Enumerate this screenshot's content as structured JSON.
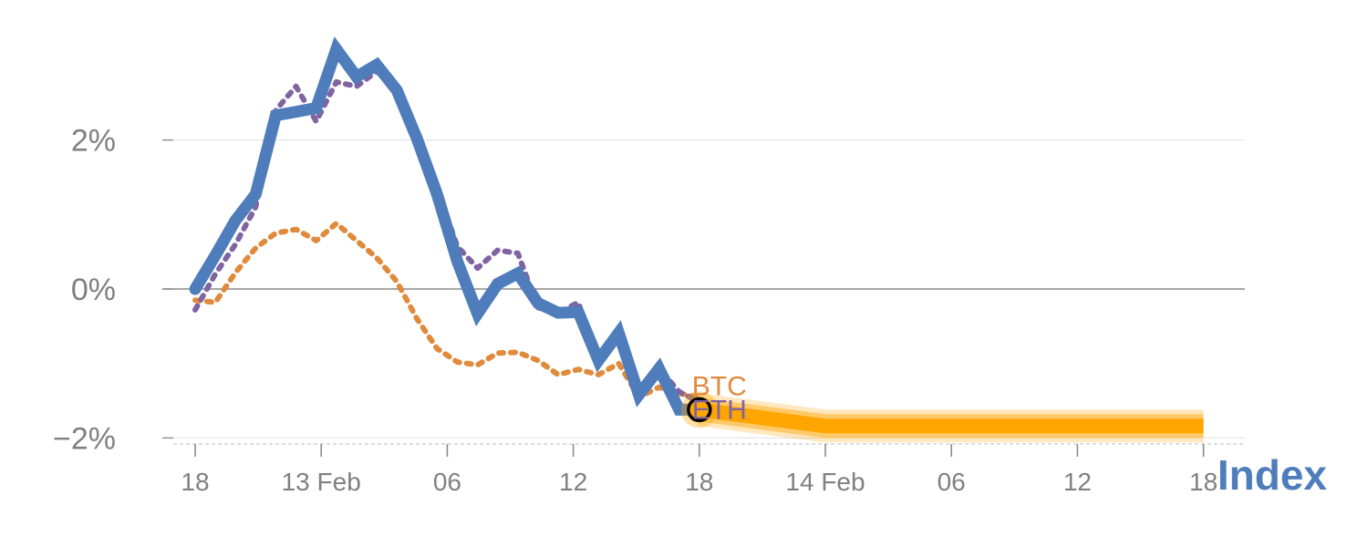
{
  "chart_data": {
    "type": "line",
    "x_ticks": [
      "18",
      "13 Feb",
      "06",
      "12",
      "18",
      "14 Feb",
      "06",
      "12",
      "18"
    ],
    "y_ticks": [
      {
        "value": 2,
        "label": "2%"
      },
      {
        "value": 0,
        "label": "0%"
      },
      {
        "value": -2,
        "label": "−2%"
      }
    ],
    "ylim": [
      -2.1,
      3.4
    ],
    "xlim": [
      -0.15,
      8.3
    ],
    "corner_label": "Index",
    "end_labels": [
      "BTC",
      "ETH"
    ],
    "series": [
      {
        "key": "index",
        "color": "#4f7dbc",
        "style": "solid",
        "x": [
          0,
          0.16,
          0.32,
          0.48,
          0.64,
          0.8,
          0.96,
          1.12,
          1.28,
          1.44,
          1.6,
          1.76,
          1.92,
          2.08,
          2.24,
          2.4,
          2.56,
          2.72,
          2.88,
          3.04,
          3.2,
          3.36,
          3.52,
          3.68,
          3.84,
          4.0
        ],
        "y": [
          0.0,
          0.45,
          0.92,
          1.27,
          2.33,
          2.38,
          2.43,
          3.22,
          2.85,
          3.01,
          2.67,
          2.02,
          1.27,
          0.37,
          -0.33,
          0.07,
          0.21,
          -0.19,
          -0.32,
          -0.31,
          -0.96,
          -0.59,
          -1.42,
          -1.07,
          -1.62,
          -1.62
        ]
      },
      {
        "key": "eth",
        "color": "#8064a2",
        "style": "dotted",
        "x": [
          0,
          0.16,
          0.32,
          0.48,
          0.64,
          0.8,
          0.96,
          1.12,
          1.28,
          1.44,
          1.6,
          1.76,
          1.92,
          2.08,
          2.24,
          2.4,
          2.56,
          2.72,
          2.88,
          3.04,
          3.2,
          3.36,
          3.52,
          3.68,
          3.84,
          3.98
        ],
        "y": [
          -0.28,
          0.2,
          0.6,
          1.1,
          2.4,
          2.72,
          2.25,
          2.78,
          2.72,
          2.92,
          2.72,
          2.08,
          1.35,
          0.57,
          0.28,
          0.52,
          0.48,
          -0.25,
          -0.32,
          -0.18,
          -1.02,
          -0.62,
          -1.44,
          -1.07,
          -1.38,
          -1.5
        ]
      },
      {
        "key": "btc",
        "color": "#e08a3c",
        "style": "dotted",
        "x": [
          0,
          0.16,
          0.32,
          0.48,
          0.64,
          0.8,
          0.96,
          1.12,
          1.28,
          1.44,
          1.6,
          1.76,
          1.92,
          2.08,
          2.24,
          2.4,
          2.56,
          2.72,
          2.88,
          3.04,
          3.2,
          3.36,
          3.52,
          3.68,
          3.84,
          3.98
        ],
        "y": [
          -0.15,
          -0.18,
          0.22,
          0.55,
          0.75,
          0.8,
          0.65,
          0.88,
          0.65,
          0.42,
          0.1,
          -0.4,
          -0.8,
          -0.98,
          -1.02,
          -0.86,
          -0.85,
          -0.96,
          -1.15,
          -1.08,
          -1.15,
          -1.0,
          -1.45,
          -1.32,
          -1.4,
          -1.45
        ]
      },
      {
        "key": "forecast",
        "color": "#ffa500",
        "style": "band",
        "x": [
          4.0,
          5.0,
          6.0,
          7.0,
          8.0
        ],
        "y": [
          -1.62,
          -1.84,
          -1.84,
          -1.84,
          -1.84
        ]
      }
    ],
    "end_marker": {
      "x": 4.0,
      "y": -1.62,
      "fill": "#ffa500"
    }
  }
}
